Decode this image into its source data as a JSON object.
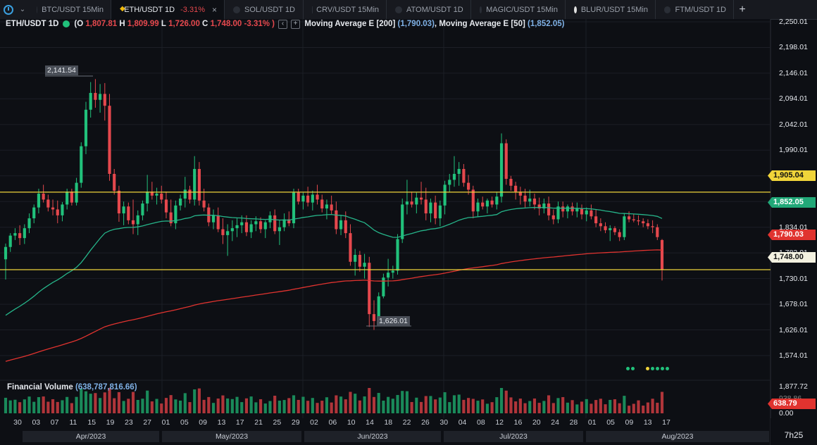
{
  "tabs": [
    {
      "label": "BTC/USDT 15Min"
    },
    {
      "label": "ETH/USDT 1D",
      "change": "-3.31%",
      "active": true,
      "close": "×"
    },
    {
      "label": "SOL/USDT 1D"
    },
    {
      "label": "CRV/USDT 15Min"
    },
    {
      "label": "ATOM/USDT 1D"
    },
    {
      "label": "MAGIC/USDT 15Min"
    },
    {
      "label": "BLUR/USDT 15Min"
    },
    {
      "label": "FTM/USDT 1D"
    }
  ],
  "add_tab": "+",
  "legend": {
    "symbol": "ETH/USDT 1D",
    "ohlc_open_label": "(O",
    "open": "1,807.81",
    "high_label": "H",
    "high": "1,809.99",
    "low_label": "L",
    "low": "1,726.00",
    "close_label": "C",
    "close": "1,748.00",
    "change": "-3.31% )",
    "ma200_label": "Moving Average E [200]",
    "ma200_value": "(1,790.03)",
    "ma50_label": "Moving Average E [50]",
    "ma50_value": "(1,852.05)",
    "collapse_btn": "‹",
    "add_btn": "+"
  },
  "annotations": {
    "high_label": "2,141.54",
    "low_label": "1,626.01"
  },
  "price_axis": [
    "2,250.01",
    "2,198.01",
    "2,146.01",
    "2,094.01",
    "2,042.01",
    "1,990.01",
    "1,938.01",
    "1,886.01",
    "1,834.01",
    "1,782.01",
    "1,730.01",
    "1,678.01",
    "1,626.01",
    "1,574.01"
  ],
  "price_tags": {
    "resistance": "1,905.04",
    "ma50": "1,852.05",
    "ma200": "1,790.03",
    "close": "1,748.00",
    "volume": "638.79"
  },
  "volume": {
    "label": "Financial Volume",
    "value": "(638,787,816.66)",
    "axis_top": "1,877.72",
    "axis_mid": "938.86",
    "axis_zero": "0.00"
  },
  "x_ticks": [
    "30",
    "03",
    "07",
    "11",
    "15",
    "19",
    "23",
    "27",
    "01",
    "05",
    "09",
    "13",
    "17",
    "21",
    "25",
    "29",
    "02",
    "06",
    "10",
    "14",
    "18",
    "22",
    "26",
    "30",
    "04",
    "08",
    "12",
    "16",
    "20",
    "24",
    "28",
    "01",
    "05",
    "09",
    "13",
    "17"
  ],
  "months": [
    "Apr/2023",
    "May/2023",
    "Jun/2023",
    "Jul/2023",
    "Aug/2023"
  ],
  "time_left": "7h25",
  "colors": {
    "up": "#21c17b",
    "down": "#e5484d",
    "ma50": "#26b58a",
    "ma200": "#e0332f",
    "hline": "#f0d43a",
    "background": "#0d0f14"
  },
  "chart_data": {
    "type": "candlestick",
    "hlines": [
      1905.04,
      1748.0
    ],
    "candles": [
      [
        1769,
        1801,
        1728,
        1794
      ],
      [
        1794,
        1822,
        1784,
        1817
      ],
      [
        1817,
        1832,
        1808,
        1822
      ],
      [
        1822,
        1838,
        1798,
        1812
      ],
      [
        1812,
        1840,
        1800,
        1832
      ],
      [
        1832,
        1862,
        1822,
        1852
      ],
      [
        1852,
        1880,
        1842,
        1874
      ],
      [
        1874,
        1912,
        1862,
        1902
      ],
      [
        1902,
        1920,
        1884,
        1890
      ],
      [
        1890,
        1900,
        1866,
        1874
      ],
      [
        1874,
        1890,
        1858,
        1870
      ],
      [
        1870,
        1888,
        1842,
        1858
      ],
      [
        1858,
        1885,
        1846,
        1880
      ],
      [
        1880,
        1912,
        1870,
        1906
      ],
      [
        1906,
        1912,
        1878,
        1884
      ],
      [
        1884,
        1934,
        1878,
        1924
      ],
      [
        1924,
        2006,
        1914,
        1998
      ],
      [
        1998,
        2088,
        1982,
        2072
      ],
      [
        2072,
        2128,
        2056,
        2106
      ],
      [
        2106,
        2134,
        2076,
        2092
      ],
      [
        2092,
        2124,
        2066,
        2104
      ],
      [
        2104,
        2126,
        2050,
        2080
      ],
      [
        2080,
        2104,
        1928,
        1942
      ],
      [
        1942,
        1952,
        1900,
        1908
      ],
      [
        1908,
        1918,
        1845,
        1862
      ],
      [
        1862,
        1886,
        1838,
        1876
      ],
      [
        1876,
        1884,
        1840,
        1848
      ],
      [
        1848,
        1890,
        1820,
        1840
      ],
      [
        1840,
        1868,
        1818,
        1858
      ],
      [
        1858,
        1888,
        1848,
        1882
      ],
      [
        1882,
        1940,
        1866,
        1906
      ],
      [
        1906,
        1926,
        1890,
        1898
      ],
      [
        1898,
        1914,
        1880,
        1902
      ],
      [
        1902,
        1918,
        1882,
        1890
      ],
      [
        1890,
        1906,
        1852,
        1864
      ],
      [
        1864,
        1890,
        1836,
        1842
      ],
      [
        1842,
        1888,
        1830,
        1878
      ],
      [
        1878,
        1900,
        1868,
        1892
      ],
      [
        1892,
        1936,
        1874,
        1910
      ],
      [
        1910,
        1918,
        1882,
        1890
      ],
      [
        1890,
        1978,
        1878,
        1952
      ],
      [
        1952,
        1966,
        1878,
        1888
      ],
      [
        1888,
        1912,
        1866,
        1874
      ],
      [
        1874,
        1882,
        1836,
        1844
      ],
      [
        1844,
        1870,
        1830,
        1858
      ],
      [
        1858,
        1874,
        1824,
        1830
      ],
      [
        1830,
        1852,
        1800,
        1818
      ],
      [
        1818,
        1840,
        1776,
        1826
      ],
      [
        1826,
        1848,
        1806,
        1832
      ],
      [
        1832,
        1852,
        1814,
        1838
      ],
      [
        1838,
        1858,
        1822,
        1844
      ],
      [
        1844,
        1858,
        1816,
        1824
      ],
      [
        1824,
        1848,
        1812,
        1840
      ],
      [
        1840,
        1856,
        1826,
        1846
      ],
      [
        1846,
        1854,
        1822,
        1830
      ],
      [
        1830,
        1848,
        1812,
        1844
      ],
      [
        1844,
        1866,
        1832,
        1858
      ],
      [
        1858,
        1870,
        1820,
        1826
      ],
      [
        1826,
        1848,
        1798,
        1834
      ],
      [
        1834,
        1862,
        1826,
        1850
      ],
      [
        1850,
        1866,
        1836,
        1842
      ],
      [
        1842,
        1912,
        1832,
        1904
      ],
      [
        1904,
        1912,
        1880,
        1886
      ],
      [
        1886,
        1904,
        1870,
        1898
      ],
      [
        1898,
        1916,
        1876,
        1884
      ],
      [
        1884,
        1908,
        1868,
        1900
      ],
      [
        1900,
        1920,
        1880,
        1890
      ],
      [
        1890,
        1900,
        1864,
        1872
      ],
      [
        1872,
        1890,
        1850,
        1880
      ],
      [
        1880,
        1898,
        1860,
        1868
      ],
      [
        1868,
        1886,
        1820,
        1830
      ],
      [
        1830,
        1858,
        1818,
        1848
      ],
      [
        1848,
        1866,
        1812,
        1822
      ],
      [
        1822,
        1840,
        1756,
        1764
      ],
      [
        1764,
        1790,
        1736,
        1778
      ],
      [
        1778,
        1786,
        1744,
        1754
      ],
      [
        1754,
        1780,
        1730,
        1762
      ],
      [
        1762,
        1774,
        1632,
        1658
      ],
      [
        1658,
        1686,
        1626,
        1644
      ],
      [
        1644,
        1702,
        1634,
        1694
      ],
      [
        1694,
        1740,
        1690,
        1732
      ],
      [
        1732,
        1770,
        1714,
        1742
      ],
      [
        1742,
        1756,
        1730,
        1746
      ],
      [
        1746,
        1820,
        1738,
        1810
      ],
      [
        1810,
        1892,
        1802,
        1880
      ],
      [
        1880,
        1930,
        1860,
        1886
      ],
      [
        1886,
        1906,
        1874,
        1880
      ],
      [
        1880,
        1904,
        1862,
        1894
      ],
      [
        1894,
        1926,
        1880,
        1890
      ],
      [
        1890,
        1914,
        1848,
        1862
      ],
      [
        1862,
        1892,
        1844,
        1884
      ],
      [
        1884,
        1898,
        1840,
        1852
      ],
      [
        1852,
        1888,
        1836,
        1878
      ],
      [
        1878,
        1928,
        1860,
        1920
      ],
      [
        1920,
        1942,
        1906,
        1930
      ],
      [
        1930,
        1978,
        1916,
        1942
      ],
      [
        1942,
        1966,
        1918,
        1952
      ],
      [
        1952,
        1962,
        1916,
        1924
      ],
      [
        1924,
        1940,
        1900,
        1910
      ],
      [
        1910,
        1918,
        1852,
        1866
      ],
      [
        1866,
        1892,
        1856,
        1884
      ],
      [
        1884,
        1896,
        1870,
        1876
      ],
      [
        1876,
        1892,
        1862,
        1888
      ],
      [
        1888,
        1896,
        1874,
        1880
      ],
      [
        1880,
        1906,
        1870,
        1896
      ],
      [
        1896,
        2024,
        1884,
        2004
      ],
      [
        2004,
        2012,
        1920,
        1932
      ],
      [
        1932,
        1938,
        1908,
        1918
      ],
      [
        1918,
        1926,
        1890,
        1906
      ],
      [
        1906,
        1916,
        1880,
        1898
      ],
      [
        1898,
        1912,
        1874,
        1886
      ],
      [
        1886,
        1910,
        1876,
        1892
      ],
      [
        1892,
        1902,
        1870,
        1880
      ],
      [
        1880,
        1894,
        1858,
        1872
      ],
      [
        1872,
        1892,
        1862,
        1882
      ],
      [
        1882,
        1896,
        1848,
        1858
      ],
      [
        1858,
        1870,
        1840,
        1850
      ],
      [
        1850,
        1886,
        1842,
        1876
      ],
      [
        1876,
        1886,
        1854,
        1866
      ],
      [
        1866,
        1880,
        1852,
        1876
      ],
      [
        1876,
        1884,
        1858,
        1866
      ],
      [
        1866,
        1884,
        1854,
        1872
      ],
      [
        1872,
        1880,
        1850,
        1860
      ],
      [
        1860,
        1874,
        1846,
        1868
      ],
      [
        1868,
        1880,
        1850,
        1856
      ],
      [
        1856,
        1870,
        1834,
        1842
      ],
      [
        1842,
        1852,
        1826,
        1836
      ],
      [
        1836,
        1844,
        1822,
        1828
      ],
      [
        1828,
        1838,
        1806,
        1832
      ],
      [
        1832,
        1836,
        1818,
        1824
      ],
      [
        1824,
        1830,
        1806,
        1814
      ],
      [
        1814,
        1862,
        1808,
        1856
      ],
      [
        1856,
        1866,
        1844,
        1850
      ],
      [
        1850,
        1860,
        1844,
        1848
      ],
      [
        1848,
        1858,
        1838,
        1846
      ],
      [
        1846,
        1852,
        1834,
        1842
      ],
      [
        1842,
        1850,
        1830,
        1836
      ],
      [
        1836,
        1848,
        1822,
        1834
      ],
      [
        1834,
        1840,
        1808,
        1814
      ],
      [
        1808,
        1810,
        1726,
        1748
      ]
    ]
  }
}
